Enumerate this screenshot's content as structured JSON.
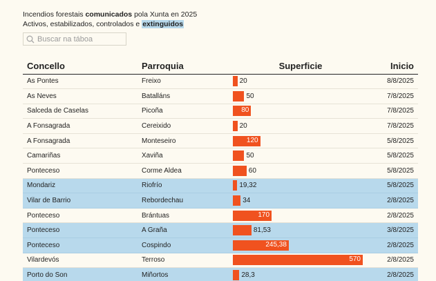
{
  "header": {
    "line1_prefix": "Incendios forestais ",
    "line1_bold": "comunicados",
    "line1_suffix": " pola Xunta en 2025",
    "line2_prefix": "Activos, estabilizados, controlados e ",
    "line2_highlight": "extinguidos"
  },
  "search": {
    "placeholder": "Buscar na táboa",
    "icon": "search-icon"
  },
  "table": {
    "columns": [
      "Concello",
      "Parroquia",
      "Superficie",
      "Inicio"
    ],
    "max_superficie": 570,
    "colors": {
      "bar": "#f0521f",
      "extinguished_row": "#b8d9ec",
      "background": "#fdfaf1"
    },
    "rows": [
      {
        "concello": "As Pontes",
        "parroquia": "Freixo",
        "superficie": 20,
        "superficie_label": "20",
        "inicio": "8/8/2025",
        "extinguido": false
      },
      {
        "concello": "As Neves",
        "parroquia": "Batalláns",
        "superficie": 50,
        "superficie_label": "50",
        "inicio": "7/8/2025",
        "extinguido": false
      },
      {
        "concello": "Salceda de Caselas",
        "parroquia": "Picoña",
        "superficie": 80,
        "superficie_label": "80",
        "inicio": "7/8/2025",
        "extinguido": false
      },
      {
        "concello": "A Fonsagrada",
        "parroquia": "Cereixido",
        "superficie": 20,
        "superficie_label": "20",
        "inicio": "7/8/2025",
        "extinguido": false
      },
      {
        "concello": "A Fonsagrada",
        "parroquia": "Monteseiro",
        "superficie": 120,
        "superficie_label": "120",
        "inicio": "5/8/2025",
        "extinguido": false
      },
      {
        "concello": "Camariñas",
        "parroquia": "Xaviña",
        "superficie": 50,
        "superficie_label": "50",
        "inicio": "5/8/2025",
        "extinguido": false
      },
      {
        "concello": "Ponteceso",
        "parroquia": "Corme Aldea",
        "superficie": 60,
        "superficie_label": "60",
        "inicio": "5/8/2025",
        "extinguido": false
      },
      {
        "concello": "Mondariz",
        "parroquia": "Riofrío",
        "superficie": 19.32,
        "superficie_label": "19,32",
        "inicio": "5/8/2025",
        "extinguido": true
      },
      {
        "concello": "Vilar de Barrio",
        "parroquia": "Rebordechau",
        "superficie": 34,
        "superficie_label": "34",
        "inicio": "2/8/2025",
        "extinguido": true
      },
      {
        "concello": "Ponteceso",
        "parroquia": "Brántuas",
        "superficie": 170,
        "superficie_label": "170",
        "inicio": "2/8/2025",
        "extinguido": false
      },
      {
        "concello": "Ponteceso",
        "parroquia": "A Graña",
        "superficie": 81.53,
        "superficie_label": "81,53",
        "inicio": "3/8/2025",
        "extinguido": true
      },
      {
        "concello": "Ponteceso",
        "parroquia": "Cospindo",
        "superficie": 245.38,
        "superficie_label": "245,38",
        "inicio": "2/8/2025",
        "extinguido": true
      },
      {
        "concello": "Vilardevós",
        "parroquia": "Terroso",
        "superficie": 570,
        "superficie_label": "570",
        "inicio": "2/8/2025",
        "extinguido": false
      },
      {
        "concello": "Porto do Son",
        "parroquia": "Miñortos",
        "superficie": 28.3,
        "superficie_label": "28,3",
        "inicio": "2/8/2025",
        "extinguido": true
      }
    ]
  }
}
